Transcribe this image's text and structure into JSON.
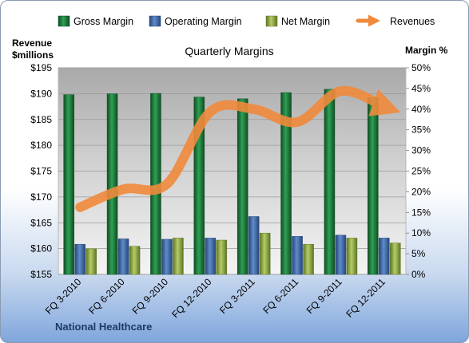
{
  "chart_data": {
    "type": "bar",
    "title": "Quarterly Margins",
    "company": "National Healthcare",
    "y_left": {
      "label_line1": "Revenue",
      "label_line2": "$millions",
      "min": 155,
      "max": 195,
      "step": 5,
      "ticks": [
        "$155",
        "$160",
        "$165",
        "$170",
        "$175",
        "$180",
        "$185",
        "$190",
        "$195"
      ]
    },
    "y_right": {
      "label": "Margin %",
      "min": 0,
      "max": 50,
      "step": 5,
      "ticks": [
        "0%",
        "5%",
        "10%",
        "15%",
        "20%",
        "25%",
        "30%",
        "35%",
        "40%",
        "45%",
        "50%"
      ]
    },
    "categories": [
      "FQ 3-2010",
      "FQ 6-2010",
      "FQ 9-2010",
      "FQ 12-2010",
      "FQ 3-2011",
      "FQ 6-2011",
      "FQ 9-2011",
      "FQ 12-2011"
    ],
    "series": [
      {
        "name": "Gross Margin",
        "axis": "right",
        "type": "bar",
        "color": "#1e7a3c",
        "values": [
          43.5,
          43.7,
          43.8,
          42.9,
          42.5,
          44.0,
          44.8,
          42.8
        ]
      },
      {
        "name": "Operating Margin",
        "axis": "right",
        "type": "bar",
        "color": "#3d6aa8",
        "values": [
          7.3,
          8.6,
          8.5,
          8.8,
          14.0,
          9.2,
          9.5,
          8.8
        ]
      },
      {
        "name": "Net Margin",
        "axis": "right",
        "type": "bar",
        "color": "#8fab43",
        "values": [
          6.2,
          6.8,
          8.8,
          8.3,
          10.0,
          7.3,
          8.8,
          7.6
        ]
      },
      {
        "name": "Revenues",
        "axis": "left",
        "type": "line",
        "color": "#f08a3c",
        "values": [
          168.0,
          171.5,
          172.5,
          186.5,
          187.0,
          184.5,
          190.5,
          187.5
        ]
      }
    ],
    "legend_position": "top",
    "grid": true
  }
}
